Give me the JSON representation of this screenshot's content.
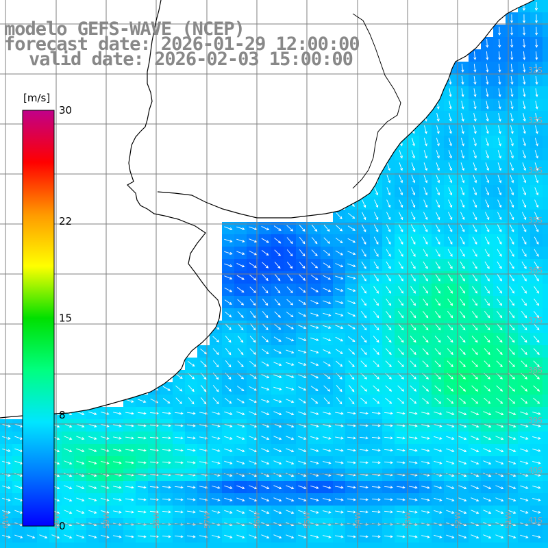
{
  "title": {
    "line1": "modelo GEFS-WAVE (NCEP)",
    "line2": "forecast date: 2026-01-29 12:00:00",
    "line3": "valid date: 2026-02-03 15:00:00"
  },
  "colorbar": {
    "unit": "[m/s]",
    "min": 0,
    "max": 30,
    "ticks": [
      {
        "value": 30,
        "label": "30"
      },
      {
        "value": 22,
        "label": "22"
      },
      {
        "value": 15,
        "label": "15"
      },
      {
        "value": 8,
        "label": "8"
      },
      {
        "value": 0,
        "label": "0"
      }
    ],
    "stops": [
      "#0000ff",
      "#0078ff",
      "#00e6ff",
      "#00ff80",
      "#00e000",
      "#ffff00",
      "#ff9900",
      "#ff0000",
      "#c0008a"
    ]
  },
  "lat_labels": [
    "32S",
    "33S",
    "34S",
    "35S",
    "36S",
    "37S",
    "38S",
    "39S",
    "40S",
    "41S"
  ],
  "lon_labels": [
    "61W",
    "60W",
    "59W",
    "58W",
    "57W",
    "56W",
    "55W",
    "54W",
    "53W",
    "52W",
    "51W"
  ],
  "map": {
    "land_color": "#ffffff",
    "coastline_color": "#000000",
    "grid_color": "#7f7f7f",
    "arrow_color": "#ffffff"
  }
}
